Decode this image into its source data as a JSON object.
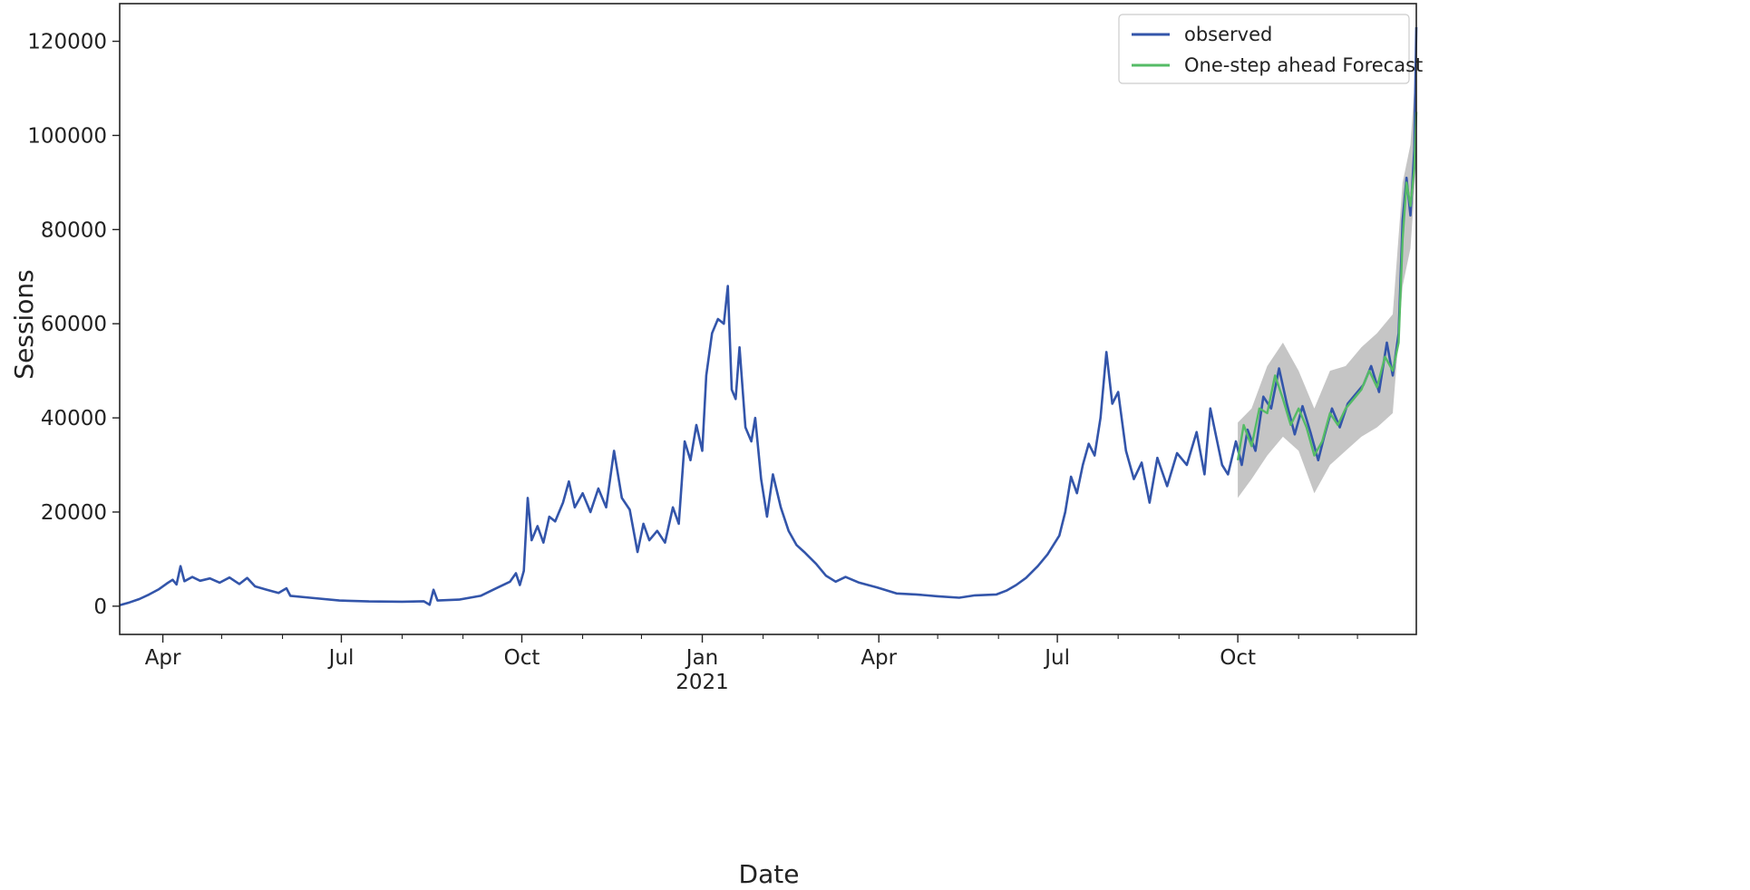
{
  "chart_data": {
    "type": "line",
    "xlabel": "Date",
    "ylabel": "Sessions",
    "ylim": [
      -6000,
      128000
    ],
    "xlim": [
      "2020-03-10",
      "2021-12-31"
    ],
    "yticks": [
      0,
      20000,
      40000,
      60000,
      80000,
      100000,
      120000
    ],
    "ytick_labels": [
      "0",
      "20000",
      "40000",
      "60000",
      "80000",
      "100000",
      "120000"
    ],
    "xticks": [
      "2020-04-01",
      "2020-07-01",
      "2020-10-01",
      "2021-01-01",
      "2021-04-01",
      "2021-07-01",
      "2021-10-01"
    ],
    "xtick_labels": [
      "Apr",
      "Jul",
      "Oct",
      "Jan",
      "Apr",
      "Jul",
      "Oct"
    ],
    "xtick_sublabel": "2021",
    "legend_position": "top-right",
    "grid": false,
    "colors": {
      "observed": "#3355aa",
      "forecast": "#55bb66",
      "confidence_band": "#bbbbbb"
    },
    "series": [
      {
        "name": "observed",
        "points": [
          [
            "2020-03-10",
            200
          ],
          [
            "2020-03-15",
            800
          ],
          [
            "2020-03-20",
            1500
          ],
          [
            "2020-03-25",
            2500
          ],
          [
            "2020-03-30",
            3600
          ],
          [
            "2020-04-03",
            4800
          ],
          [
            "2020-04-06",
            5600
          ],
          [
            "2020-04-08",
            4600
          ],
          [
            "2020-04-10",
            8500
          ],
          [
            "2020-04-12",
            5300
          ],
          [
            "2020-04-16",
            6200
          ],
          [
            "2020-04-20",
            5400
          ],
          [
            "2020-04-25",
            5900
          ],
          [
            "2020-04-30",
            5000
          ],
          [
            "2020-05-05",
            6100
          ],
          [
            "2020-05-10",
            4700
          ],
          [
            "2020-05-14",
            6000
          ],
          [
            "2020-05-18",
            4200
          ],
          [
            "2020-05-24",
            3500
          ],
          [
            "2020-05-30",
            2800
          ],
          [
            "2020-06-03",
            3800
          ],
          [
            "2020-06-05",
            2200
          ],
          [
            "2020-06-15",
            1800
          ],
          [
            "2020-06-30",
            1200
          ],
          [
            "2020-07-15",
            1000
          ],
          [
            "2020-08-01",
            950
          ],
          [
            "2020-08-12",
            1050
          ],
          [
            "2020-08-15",
            300
          ],
          [
            "2020-08-17",
            3500
          ],
          [
            "2020-08-19",
            1200
          ],
          [
            "2020-08-30",
            1400
          ],
          [
            "2020-09-10",
            2200
          ],
          [
            "2020-09-17",
            3600
          ],
          [
            "2020-09-25",
            5200
          ],
          [
            "2020-09-28",
            7000
          ],
          [
            "2020-09-30",
            4500
          ],
          [
            "2020-10-02",
            7500
          ],
          [
            "2020-10-04",
            23000
          ],
          [
            "2020-10-06",
            14000
          ],
          [
            "2020-10-09",
            17000
          ],
          [
            "2020-10-12",
            13500
          ],
          [
            "2020-10-15",
            19000
          ],
          [
            "2020-10-18",
            18000
          ],
          [
            "2020-10-22",
            22000
          ],
          [
            "2020-10-25",
            26500
          ],
          [
            "2020-10-28",
            21000
          ],
          [
            "2020-11-01",
            24000
          ],
          [
            "2020-11-05",
            20000
          ],
          [
            "2020-11-09",
            25000
          ],
          [
            "2020-11-13",
            21000
          ],
          [
            "2020-11-17",
            33000
          ],
          [
            "2020-11-21",
            23000
          ],
          [
            "2020-11-25",
            20500
          ],
          [
            "2020-11-29",
            11500
          ],
          [
            "2020-12-02",
            17500
          ],
          [
            "2020-12-05",
            14000
          ],
          [
            "2020-12-09",
            16000
          ],
          [
            "2020-12-13",
            13500
          ],
          [
            "2020-12-17",
            21000
          ],
          [
            "2020-12-20",
            17500
          ],
          [
            "2020-12-23",
            35000
          ],
          [
            "2020-12-26",
            31000
          ],
          [
            "2020-12-29",
            38500
          ],
          [
            "2021-01-01",
            33000
          ],
          [
            "2021-01-03",
            49000
          ],
          [
            "2021-01-06",
            58000
          ],
          [
            "2021-01-09",
            61000
          ],
          [
            "2021-01-12",
            60000
          ],
          [
            "2021-01-14",
            68000
          ],
          [
            "2021-01-16",
            46000
          ],
          [
            "2021-01-18",
            44000
          ],
          [
            "2021-01-20",
            55000
          ],
          [
            "2021-01-23",
            38000
          ],
          [
            "2021-01-26",
            35000
          ],
          [
            "2021-01-28",
            40000
          ],
          [
            "2021-01-31",
            27000
          ],
          [
            "2021-02-03",
            19000
          ],
          [
            "2021-02-06",
            28000
          ],
          [
            "2021-02-10",
            21000
          ],
          [
            "2021-02-14",
            16000
          ],
          [
            "2021-02-18",
            13000
          ],
          [
            "2021-02-22",
            11500
          ],
          [
            "2021-02-28",
            9000
          ],
          [
            "2021-03-05",
            6500
          ],
          [
            "2021-03-10",
            5200
          ],
          [
            "2021-03-15",
            6200
          ],
          [
            "2021-03-22",
            5000
          ],
          [
            "2021-03-31",
            4000
          ],
          [
            "2021-04-10",
            2700
          ],
          [
            "2021-04-20",
            2500
          ],
          [
            "2021-05-01",
            2100
          ],
          [
            "2021-05-12",
            1800
          ],
          [
            "2021-05-20",
            2300
          ],
          [
            "2021-05-31",
            2500
          ],
          [
            "2021-06-05",
            3300
          ],
          [
            "2021-06-10",
            4500
          ],
          [
            "2021-06-15",
            6000
          ],
          [
            "2021-06-21",
            8500
          ],
          [
            "2021-06-26",
            11000
          ],
          [
            "2021-07-02",
            15000
          ],
          [
            "2021-07-05",
            20000
          ],
          [
            "2021-07-08",
            27500
          ],
          [
            "2021-07-11",
            24000
          ],
          [
            "2021-07-14",
            30000
          ],
          [
            "2021-07-17",
            34500
          ],
          [
            "2021-07-20",
            32000
          ],
          [
            "2021-07-23",
            40000
          ],
          [
            "2021-07-26",
            54000
          ],
          [
            "2021-07-29",
            43000
          ],
          [
            "2021-08-01",
            45500
          ],
          [
            "2021-08-05",
            33000
          ],
          [
            "2021-08-09",
            27000
          ],
          [
            "2021-08-13",
            30500
          ],
          [
            "2021-08-17",
            22000
          ],
          [
            "2021-08-21",
            31500
          ],
          [
            "2021-08-26",
            25500
          ],
          [
            "2021-08-31",
            32500
          ],
          [
            "2021-09-05",
            30000
          ],
          [
            "2021-09-10",
            37000
          ],
          [
            "2021-09-14",
            28000
          ],
          [
            "2021-09-17",
            42000
          ],
          [
            "2021-09-20",
            36000
          ],
          [
            "2021-09-23",
            30000
          ],
          [
            "2021-09-26",
            28000
          ],
          [
            "2021-09-30",
            35000
          ],
          [
            "2021-10-03",
            30000
          ],
          [
            "2021-10-06",
            37500
          ],
          [
            "2021-10-10",
            33000
          ],
          [
            "2021-10-14",
            44500
          ],
          [
            "2021-10-18",
            42000
          ],
          [
            "2021-10-22",
            50500
          ],
          [
            "2021-10-26",
            43000
          ],
          [
            "2021-10-30",
            36500
          ],
          [
            "2021-11-03",
            42500
          ],
          [
            "2021-11-07",
            37000
          ],
          [
            "2021-11-11",
            31000
          ],
          [
            "2021-11-14",
            36000
          ],
          [
            "2021-11-18",
            42000
          ],
          [
            "2021-11-22",
            38000
          ],
          [
            "2021-11-26",
            43000
          ],
          [
            "2021-11-30",
            45000
          ],
          [
            "2021-12-04",
            47000
          ],
          [
            "2021-12-08",
            51000
          ],
          [
            "2021-12-12",
            45500
          ],
          [
            "2021-12-16",
            56000
          ],
          [
            "2021-12-19",
            49000
          ],
          [
            "2021-12-22",
            58000
          ],
          [
            "2021-12-24",
            82000
          ],
          [
            "2021-12-26",
            91000
          ],
          [
            "2021-12-28",
            83000
          ],
          [
            "2021-12-30",
            97000
          ],
          [
            "2021-12-31",
            123000
          ]
        ]
      },
      {
        "name": "One-step ahead Forecast",
        "points": [
          [
            "2021-10-01",
            31000
          ],
          [
            "2021-10-04",
            38500
          ],
          [
            "2021-10-08",
            34000
          ],
          [
            "2021-10-12",
            42000
          ],
          [
            "2021-10-16",
            41000
          ],
          [
            "2021-10-20",
            49000
          ],
          [
            "2021-10-24",
            44000
          ],
          [
            "2021-10-28",
            38500
          ],
          [
            "2021-11-01",
            42000
          ],
          [
            "2021-11-05",
            38000
          ],
          [
            "2021-11-09",
            32000
          ],
          [
            "2021-11-13",
            35000
          ],
          [
            "2021-11-17",
            41000
          ],
          [
            "2021-11-21",
            38500
          ],
          [
            "2021-11-25",
            42000
          ],
          [
            "2021-11-29",
            44000
          ],
          [
            "2021-12-03",
            46000
          ],
          [
            "2021-12-07",
            50000
          ],
          [
            "2021-12-11",
            46500
          ],
          [
            "2021-12-15",
            53000
          ],
          [
            "2021-12-19",
            50000
          ],
          [
            "2021-12-22",
            56000
          ],
          [
            "2021-12-24",
            78000
          ],
          [
            "2021-12-26",
            90000
          ],
          [
            "2021-12-28",
            85000
          ],
          [
            "2021-12-30",
            93000
          ],
          [
            "2021-12-31",
            105000
          ]
        ]
      }
    ],
    "confidence_band": {
      "x": [
        "2021-10-01",
        "2021-10-08",
        "2021-10-16",
        "2021-10-24",
        "2021-11-01",
        "2021-11-09",
        "2021-11-17",
        "2021-11-25",
        "2021-12-03",
        "2021-12-11",
        "2021-12-19",
        "2021-12-24",
        "2021-12-28",
        "2021-12-31"
      ],
      "lower": [
        23000,
        27000,
        32000,
        36000,
        33000,
        24000,
        30000,
        33000,
        36000,
        38000,
        41000,
        68000,
        76000,
        94000
      ],
      "upper": [
        39000,
        42000,
        51000,
        56000,
        50000,
        42000,
        50000,
        51000,
        55000,
        58000,
        62000,
        90000,
        98000,
        116000
      ]
    }
  }
}
